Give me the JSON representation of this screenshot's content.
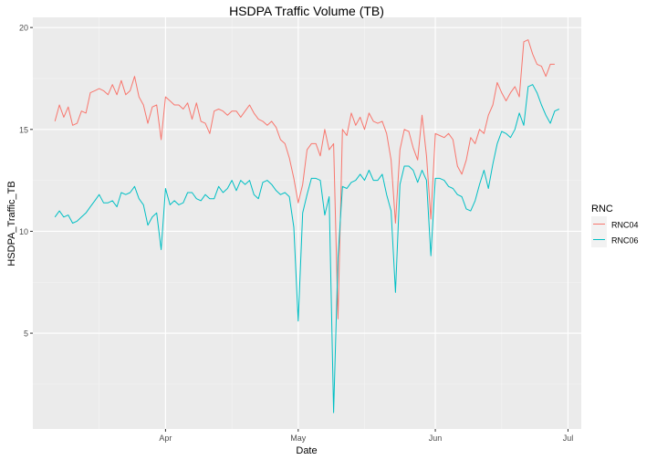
{
  "chart_data": {
    "type": "line",
    "title": "HSDPA Traffic Volume (TB)",
    "xlabel": "Date",
    "ylabel": "HSDPA_Traffic_TB",
    "x_range": [
      "2016-03-02",
      "2016-07-04"
    ],
    "ylim": [
      0.3,
      20.5
    ],
    "x_ticks": [
      {
        "date": "2016-04-01",
        "label": "Apr"
      },
      {
        "date": "2016-05-01",
        "label": "May"
      },
      {
        "date": "2016-06-01",
        "label": "Jun"
      },
      {
        "date": "2016-07-01",
        "label": "Jul"
      }
    ],
    "x_minor_ticks": [
      "2016-03-17",
      "2016-04-16",
      "2016-05-16",
      "2016-06-16"
    ],
    "y_ticks": [
      5,
      10,
      15,
      20
    ],
    "grid": true,
    "legend": {
      "title": "RNC",
      "position": "right"
    },
    "series": [
      {
        "name": "RNC04",
        "color": "#F8766D",
        "points": [
          [
            "2016-03-07",
            15.4
          ],
          [
            "2016-03-08",
            16.2
          ],
          [
            "2016-03-09",
            15.6
          ],
          [
            "2016-03-10",
            16.1
          ],
          [
            "2016-03-11",
            15.2
          ],
          [
            "2016-03-12",
            15.3
          ],
          [
            "2016-03-13",
            15.9
          ],
          [
            "2016-03-14",
            15.8
          ],
          [
            "2016-03-15",
            16.8
          ],
          [
            "2016-03-16",
            16.9
          ],
          [
            "2016-03-17",
            17.0
          ],
          [
            "2016-03-18",
            16.9
          ],
          [
            "2016-03-19",
            16.7
          ],
          [
            "2016-03-20",
            17.2
          ],
          [
            "2016-03-21",
            16.7
          ],
          [
            "2016-03-22",
            17.4
          ],
          [
            "2016-03-23",
            16.7
          ],
          [
            "2016-03-24",
            16.9
          ],
          [
            "2016-03-25",
            17.6
          ],
          [
            "2016-03-26",
            16.6
          ],
          [
            "2016-03-27",
            16.2
          ],
          [
            "2016-03-28",
            15.3
          ],
          [
            "2016-03-29",
            16.1
          ],
          [
            "2016-03-30",
            16.2
          ],
          [
            "2016-03-31",
            14.5
          ],
          [
            "2016-04-01",
            16.6
          ],
          [
            "2016-04-02",
            16.4
          ],
          [
            "2016-04-03",
            16.2
          ],
          [
            "2016-04-04",
            16.2
          ],
          [
            "2016-04-05",
            16.0
          ],
          [
            "2016-04-06",
            16.3
          ],
          [
            "2016-04-07",
            15.5
          ],
          [
            "2016-04-08",
            16.3
          ],
          [
            "2016-04-09",
            15.4
          ],
          [
            "2016-04-10",
            15.3
          ],
          [
            "2016-04-11",
            14.8
          ],
          [
            "2016-04-12",
            15.9
          ],
          [
            "2016-04-13",
            16.0
          ],
          [
            "2016-04-14",
            15.9
          ],
          [
            "2016-04-15",
            15.7
          ],
          [
            "2016-04-16",
            15.9
          ],
          [
            "2016-04-17",
            15.9
          ],
          [
            "2016-04-18",
            15.6
          ],
          [
            "2016-04-19",
            15.9
          ],
          [
            "2016-04-20",
            16.2
          ],
          [
            "2016-04-21",
            15.8
          ],
          [
            "2016-04-22",
            15.5
          ],
          [
            "2016-04-23",
            15.4
          ],
          [
            "2016-04-24",
            15.2
          ],
          [
            "2016-04-25",
            15.4
          ],
          [
            "2016-04-26",
            15.1
          ],
          [
            "2016-04-27",
            14.5
          ],
          [
            "2016-04-28",
            14.3
          ],
          [
            "2016-04-29",
            13.6
          ],
          [
            "2016-04-30",
            12.6
          ],
          [
            "2016-05-01",
            11.4
          ],
          [
            "2016-05-02",
            12.3
          ],
          [
            "2016-05-03",
            14.0
          ],
          [
            "2016-05-04",
            14.3
          ],
          [
            "2016-05-05",
            14.3
          ],
          [
            "2016-05-06",
            13.7
          ],
          [
            "2016-05-07",
            15.0
          ],
          [
            "2016-05-08",
            14.0
          ],
          [
            "2016-05-09",
            14.3
          ],
          [
            "2016-05-10",
            5.7
          ],
          [
            "2016-05-11",
            15.0
          ],
          [
            "2016-05-12",
            14.7
          ],
          [
            "2016-05-13",
            15.8
          ],
          [
            "2016-05-14",
            15.2
          ],
          [
            "2016-05-15",
            15.6
          ],
          [
            "2016-05-16",
            15.0
          ],
          [
            "2016-05-17",
            15.8
          ],
          [
            "2016-05-18",
            15.4
          ],
          [
            "2016-05-19",
            15.3
          ],
          [
            "2016-05-20",
            15.4
          ],
          [
            "2016-05-21",
            14.8
          ],
          [
            "2016-05-22",
            13.5
          ],
          [
            "2016-05-23",
            10.4
          ],
          [
            "2016-05-24",
            14.0
          ],
          [
            "2016-05-25",
            15.0
          ],
          [
            "2016-05-26",
            14.9
          ],
          [
            "2016-05-27",
            14.1
          ],
          [
            "2016-05-28",
            13.5
          ],
          [
            "2016-05-29",
            15.7
          ],
          [
            "2016-05-30",
            13.7
          ],
          [
            "2016-05-31",
            10.6
          ],
          [
            "2016-06-01",
            14.8
          ],
          [
            "2016-06-02",
            14.7
          ],
          [
            "2016-06-03",
            14.6
          ],
          [
            "2016-06-04",
            14.8
          ],
          [
            "2016-06-05",
            14.5
          ],
          [
            "2016-06-06",
            13.2
          ],
          [
            "2016-06-07",
            12.8
          ],
          [
            "2016-06-08",
            13.5
          ],
          [
            "2016-06-09",
            14.6
          ],
          [
            "2016-06-10",
            14.3
          ],
          [
            "2016-06-11",
            15.0
          ],
          [
            "2016-06-12",
            14.8
          ],
          [
            "2016-06-13",
            15.7
          ],
          [
            "2016-06-14",
            16.2
          ],
          [
            "2016-06-15",
            17.3
          ],
          [
            "2016-06-16",
            16.8
          ],
          [
            "2016-06-17",
            16.4
          ],
          [
            "2016-06-18",
            16.8
          ],
          [
            "2016-06-19",
            17.1
          ],
          [
            "2016-06-20",
            16.6
          ],
          [
            "2016-06-21",
            19.3
          ],
          [
            "2016-06-22",
            19.4
          ],
          [
            "2016-06-23",
            18.7
          ],
          [
            "2016-06-24",
            18.2
          ],
          [
            "2016-06-25",
            18.1
          ],
          [
            "2016-06-26",
            17.6
          ],
          [
            "2016-06-27",
            18.2
          ],
          [
            "2016-06-28",
            18.2
          ]
        ]
      },
      {
        "name": "RNC06",
        "color": "#00BFC4",
        "points": [
          [
            "2016-03-07",
            10.7
          ],
          [
            "2016-03-08",
            11.0
          ],
          [
            "2016-03-09",
            10.7
          ],
          [
            "2016-03-10",
            10.8
          ],
          [
            "2016-03-11",
            10.4
          ],
          [
            "2016-03-12",
            10.5
          ],
          [
            "2016-03-13",
            10.7
          ],
          [
            "2016-03-14",
            10.9
          ],
          [
            "2016-03-15",
            11.2
          ],
          [
            "2016-03-16",
            11.5
          ],
          [
            "2016-03-17",
            11.8
          ],
          [
            "2016-03-18",
            11.4
          ],
          [
            "2016-03-19",
            11.4
          ],
          [
            "2016-03-20",
            11.5
          ],
          [
            "2016-03-21",
            11.2
          ],
          [
            "2016-03-22",
            11.9
          ],
          [
            "2016-03-23",
            11.8
          ],
          [
            "2016-03-24",
            11.9
          ],
          [
            "2016-03-25",
            12.2
          ],
          [
            "2016-03-26",
            11.6
          ],
          [
            "2016-03-27",
            11.3
          ],
          [
            "2016-03-28",
            10.3
          ],
          [
            "2016-03-29",
            10.7
          ],
          [
            "2016-03-30",
            10.9
          ],
          [
            "2016-03-31",
            9.1
          ],
          [
            "2016-04-01",
            12.1
          ],
          [
            "2016-04-02",
            11.3
          ],
          [
            "2016-04-03",
            11.5
          ],
          [
            "2016-04-04",
            11.3
          ],
          [
            "2016-04-05",
            11.4
          ],
          [
            "2016-04-06",
            11.9
          ],
          [
            "2016-04-07",
            11.9
          ],
          [
            "2016-04-08",
            11.6
          ],
          [
            "2016-04-09",
            11.5
          ],
          [
            "2016-04-10",
            11.8
          ],
          [
            "2016-04-11",
            11.6
          ],
          [
            "2016-04-12",
            11.6
          ],
          [
            "2016-04-13",
            12.2
          ],
          [
            "2016-04-14",
            11.9
          ],
          [
            "2016-04-15",
            12.1
          ],
          [
            "2016-04-16",
            12.5
          ],
          [
            "2016-04-17",
            12.0
          ],
          [
            "2016-04-18",
            12.5
          ],
          [
            "2016-04-19",
            12.3
          ],
          [
            "2016-04-20",
            12.5
          ],
          [
            "2016-04-21",
            11.8
          ],
          [
            "2016-04-22",
            11.6
          ],
          [
            "2016-04-23",
            12.4
          ],
          [
            "2016-04-24",
            12.5
          ],
          [
            "2016-04-25",
            12.3
          ],
          [
            "2016-04-26",
            12.0
          ],
          [
            "2016-04-27",
            11.8
          ],
          [
            "2016-04-28",
            11.9
          ],
          [
            "2016-04-29",
            11.7
          ],
          [
            "2016-04-30",
            10.2
          ],
          [
            "2016-05-01",
            5.6
          ],
          [
            "2016-05-02",
            10.9
          ],
          [
            "2016-05-03",
            11.8
          ],
          [
            "2016-05-04",
            12.6
          ],
          [
            "2016-05-05",
            12.6
          ],
          [
            "2016-05-06",
            12.5
          ],
          [
            "2016-05-07",
            10.8
          ],
          [
            "2016-05-08",
            11.7
          ],
          [
            "2016-05-09",
            1.1
          ],
          [
            "2016-05-10",
            8.7
          ],
          [
            "2016-05-11",
            12.2
          ],
          [
            "2016-05-12",
            12.1
          ],
          [
            "2016-05-13",
            12.4
          ],
          [
            "2016-05-14",
            12.5
          ],
          [
            "2016-05-15",
            12.8
          ],
          [
            "2016-05-16",
            12.5
          ],
          [
            "2016-05-17",
            13.0
          ],
          [
            "2016-05-18",
            12.5
          ],
          [
            "2016-05-19",
            12.5
          ],
          [
            "2016-05-20",
            12.8
          ],
          [
            "2016-05-21",
            11.8
          ],
          [
            "2016-05-22",
            11.0
          ],
          [
            "2016-05-23",
            7.0
          ],
          [
            "2016-05-24",
            12.3
          ],
          [
            "2016-05-25",
            13.2
          ],
          [
            "2016-05-26",
            13.2
          ],
          [
            "2016-05-27",
            13.0
          ],
          [
            "2016-05-28",
            12.4
          ],
          [
            "2016-05-29",
            13.0
          ],
          [
            "2016-05-30",
            12.5
          ],
          [
            "2016-05-31",
            8.8
          ],
          [
            "2016-06-01",
            12.6
          ],
          [
            "2016-06-02",
            12.6
          ],
          [
            "2016-06-03",
            12.5
          ],
          [
            "2016-06-04",
            12.2
          ],
          [
            "2016-06-05",
            12.1
          ],
          [
            "2016-06-06",
            11.8
          ],
          [
            "2016-06-07",
            11.7
          ],
          [
            "2016-06-08",
            11.1
          ],
          [
            "2016-06-09",
            11.0
          ],
          [
            "2016-06-10",
            11.5
          ],
          [
            "2016-06-11",
            12.3
          ],
          [
            "2016-06-12",
            13.0
          ],
          [
            "2016-06-13",
            12.1
          ],
          [
            "2016-06-14",
            13.3
          ],
          [
            "2016-06-15",
            14.3
          ],
          [
            "2016-06-16",
            14.9
          ],
          [
            "2016-06-17",
            14.8
          ],
          [
            "2016-06-18",
            14.6
          ],
          [
            "2016-06-19",
            15.0
          ],
          [
            "2016-06-20",
            15.8
          ],
          [
            "2016-06-21",
            15.2
          ],
          [
            "2016-06-22",
            17.1
          ],
          [
            "2016-06-23",
            17.2
          ],
          [
            "2016-06-24",
            16.8
          ],
          [
            "2016-06-25",
            16.2
          ],
          [
            "2016-06-26",
            15.7
          ],
          [
            "2016-06-27",
            15.3
          ],
          [
            "2016-06-28",
            15.9
          ],
          [
            "2016-06-29",
            16.0
          ]
        ]
      }
    ]
  }
}
